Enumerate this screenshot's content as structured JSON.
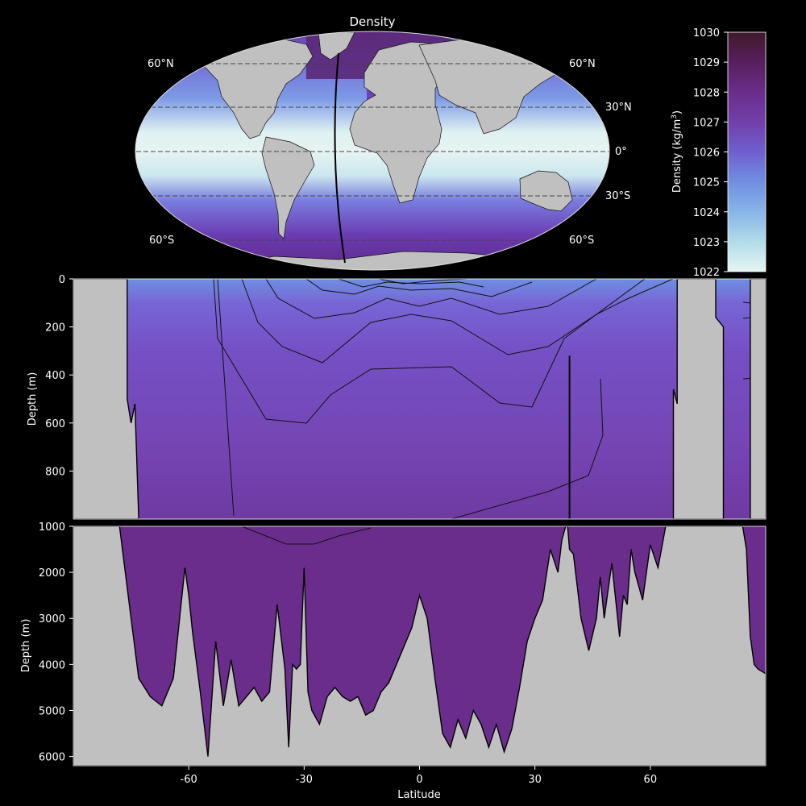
{
  "chart_data": [
    {
      "type": "heatmap",
      "panel": "map",
      "title": "Density",
      "projection": "Robinson",
      "lat_labels_left": [
        "60°N",
        "60°S"
      ],
      "lat_labels_right": [
        "60°N",
        "30°N",
        "0°",
        "30°S",
        "60°S"
      ],
      "section_line": "meridional transect in the western Atlantic (~30°W)",
      "land_color": "#c0c0c0",
      "colormap_low": "#e6f4f2",
      "colormap_high": "#3f1a2a"
    },
    {
      "type": "heatmap",
      "panel": "colorbar",
      "label": "Density (kg/m",
      "label_sup": "3",
      "label_end": ")",
      "ticks": [
        "1022",
        "1023",
        "1024",
        "1025",
        "1026",
        "1027",
        "1028",
        "1029",
        "1030"
      ],
      "range": [
        1022,
        1030
      ]
    },
    {
      "type": "heatmap",
      "panel": "upper-section",
      "ylabel": "Depth (m)",
      "ylim": [
        1000,
        0
      ],
      "yticks": [
        "0",
        "200",
        "400",
        "600",
        "800"
      ],
      "xlim": [
        -90,
        90
      ],
      "surface_min_density_near_lat": 0,
      "land_color": "#c0c0c0"
    },
    {
      "type": "heatmap",
      "panel": "lower-section",
      "ylabel": "Depth (m)",
      "xlabel": "Latitude",
      "ylim": [
        6200,
        1000
      ],
      "yticks": [
        "1000",
        "2000",
        "3000",
        "4000",
        "5000",
        "6000"
      ],
      "xticks": [
        "-60",
        "-30",
        "0",
        "30",
        "60"
      ],
      "xlim": [
        -90,
        90
      ],
      "bathymetry": {
        "lat": [
          -78,
          -75,
          -73,
          -70,
          -67,
          -64,
          -61,
          -60,
          -59,
          -57,
          -55,
          -53,
          -51,
          -49,
          -47,
          -45,
          -43,
          -41,
          -39,
          -37,
          -35,
          -34,
          -33,
          -32,
          -31,
          -30,
          -29,
          -28,
          -26,
          -24,
          -22,
          -20,
          -18,
          -16,
          -14,
          -12,
          -10,
          -8,
          -6,
          -4,
          -2,
          0,
          2,
          4,
          6,
          8,
          10,
          12,
          14,
          16,
          18,
          20,
          22,
          24,
          26,
          28,
          30,
          32,
          34,
          36,
          37,
          38,
          38.5,
          39,
          40,
          42,
          44,
          46,
          47,
          48,
          50,
          52,
          53,
          54,
          55,
          56,
          58,
          60,
          62,
          64,
          66,
          68,
          70,
          72,
          74,
          76,
          78,
          80,
          82,
          84,
          85,
          86,
          87,
          88,
          90
        ],
        "depth": [
          1000,
          3000,
          4300,
          4700,
          4900,
          4300,
          1900,
          2500,
          3300,
          4600,
          6000,
          3500,
          4900,
          3900,
          4900,
          4700,
          4500,
          4800,
          4600,
          2700,
          4100,
          5800,
          4000,
          4100,
          4000,
          1900,
          4600,
          5000,
          5300,
          4700,
          4500,
          4700,
          4800,
          4700,
          5100,
          5000,
          4600,
          4400,
          4000,
          3600,
          3200,
          2500,
          3000,
          4300,
          5500,
          5800,
          5200,
          5600,
          5000,
          5300,
          5800,
          5300,
          5900,
          5400,
          4500,
          3500,
          3000,
          2600,
          1500,
          2000,
          1300,
          1000,
          1000,
          1500,
          1600,
          3000,
          3700,
          3000,
          2100,
          3000,
          1800,
          3400,
          2500,
          2700,
          1500,
          2000,
          2600,
          1400,
          1900,
          1000,
          1000,
          1000,
          1000,
          1000,
          1000,
          1000,
          1000,
          1000,
          1000,
          1000,
          1500,
          3400,
          4000,
          4100,
          4200
        ]
      }
    }
  ]
}
